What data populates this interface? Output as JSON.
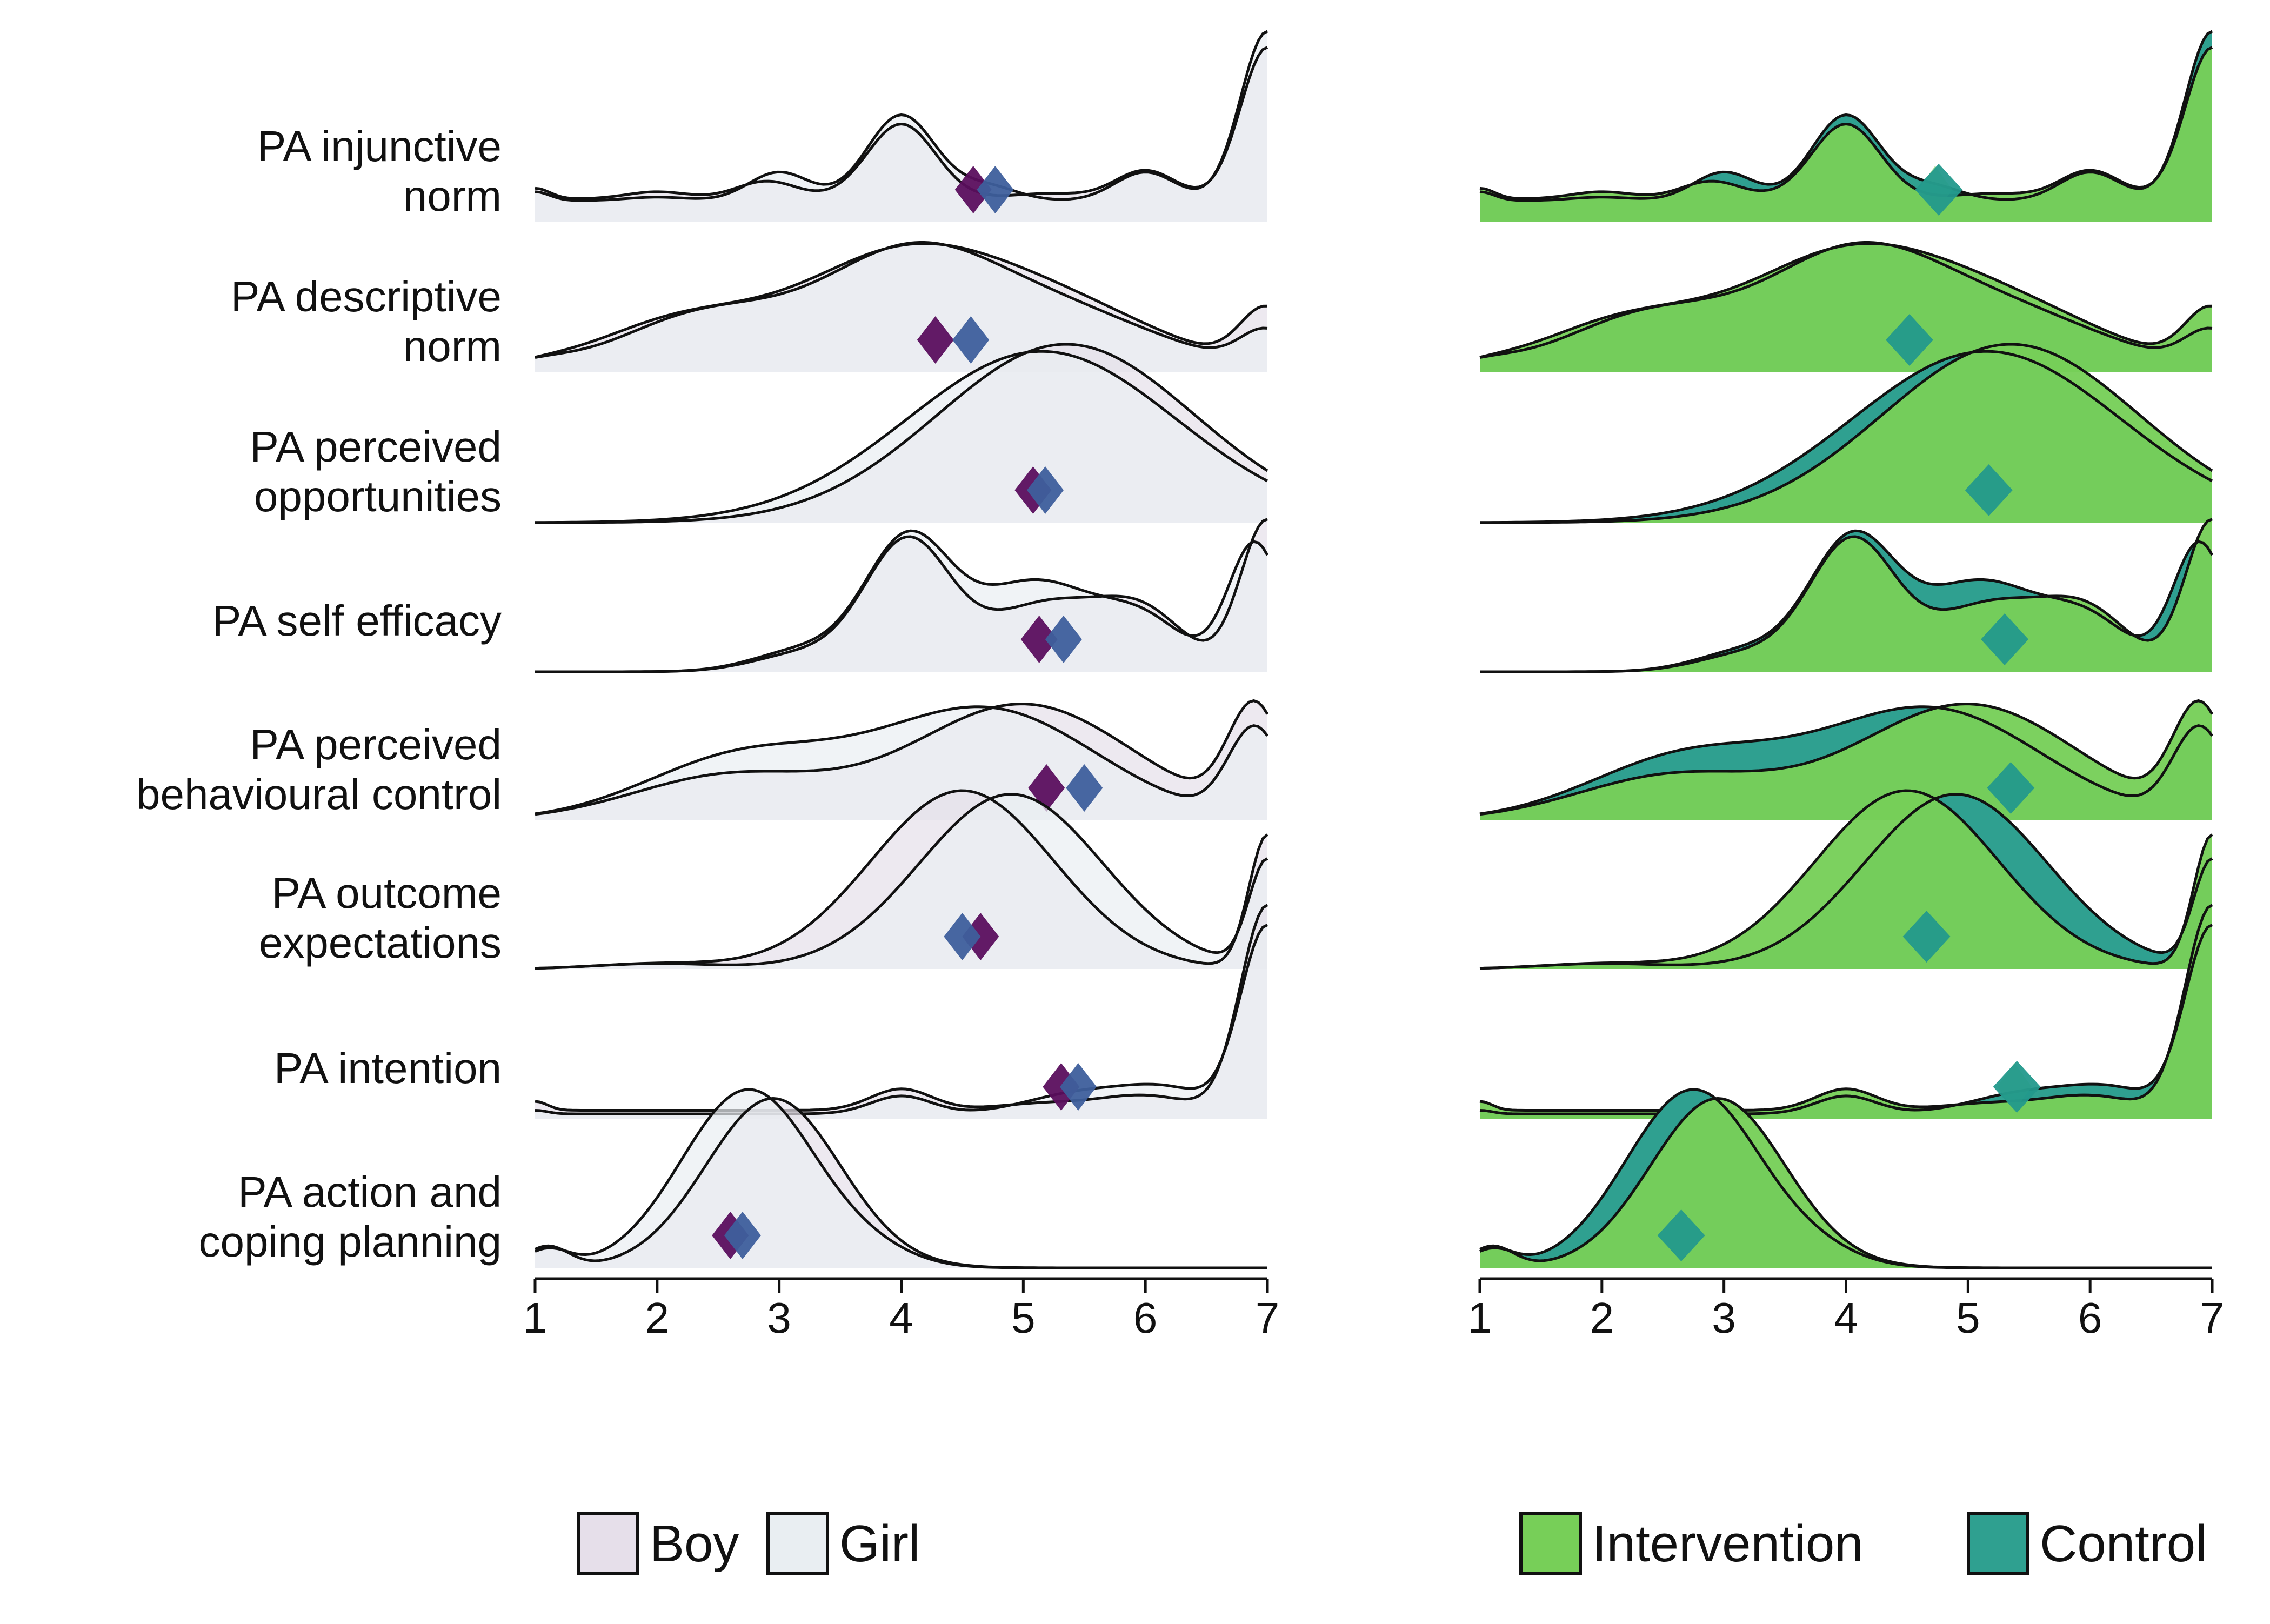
{
  "colors": {
    "boy": "#e6dfea",
    "girl": "#e9eef2",
    "boy_marker": "#5b0f5e",
    "girl_marker": "#3e5f9c",
    "intervention": "#77cf58",
    "control": "#2fa090",
    "intervention_marker": "#77cf58",
    "control_marker": "#23998c"
  },
  "chart_data": [
    {
      "type": "ridgeline",
      "panel": "sex",
      "x_ticks": [
        1,
        2,
        3,
        4,
        5,
        6,
        7
      ],
      "xlim": [
        1,
        7
      ],
      "categories": [
        "PA injunctive\nnorm",
        "PA descriptive\nnorm",
        "PA perceived\nopportunities",
        "PA self efficacy",
        "PA perceived\nbehavioural control",
        "PA outcome\nexpectations",
        "PA intention",
        "PA action and\ncoping planning"
      ],
      "legend": [
        {
          "name": "Boy",
          "color_key": "boy"
        },
        {
          "name": "Girl",
          "color_key": "girl"
        }
      ],
      "series": [
        {
          "name": "Boy",
          "marker_color_key": "boy_marker",
          "means": [
            4.59,
            4.28,
            5.08,
            5.13,
            5.19,
            4.65,
            5.31,
            2.6
          ]
        },
        {
          "name": "Girl",
          "marker_color_key": "girl_marker",
          "means": [
            4.77,
            4.57,
            5.18,
            5.33,
            5.5,
            4.5,
            5.45,
            2.7
          ]
        }
      ]
    },
    {
      "type": "ridgeline",
      "panel": "group",
      "x_ticks": [
        1,
        2,
        3,
        4,
        5,
        6,
        7
      ],
      "xlim": [
        1,
        7
      ],
      "categories": [
        "PA injunctive\nnorm",
        "PA descriptive\nnorm",
        "PA perceived\nopportunities",
        "PA self efficacy",
        "PA perceived\nbehavioural control",
        "PA outcome\nexpectations",
        "PA intention",
        "PA action and\ncoping planning"
      ],
      "legend": [
        {
          "name": "Intervention",
          "color_key": "intervention"
        },
        {
          "name": "Control",
          "color_key": "control"
        }
      ],
      "series": [
        {
          "name": "Intervention",
          "marker_color_key": "intervention_marker",
          "means": [
            4.73,
            4.48,
            5.16,
            5.28,
            5.33,
            4.63,
            5.38,
            2.65
          ]
        },
        {
          "name": "Control",
          "marker_color_key": "control_marker",
          "means": [
            4.76,
            4.52,
            5.17,
            5.3,
            5.35,
            4.66,
            5.4,
            2.65
          ]
        }
      ]
    }
  ]
}
